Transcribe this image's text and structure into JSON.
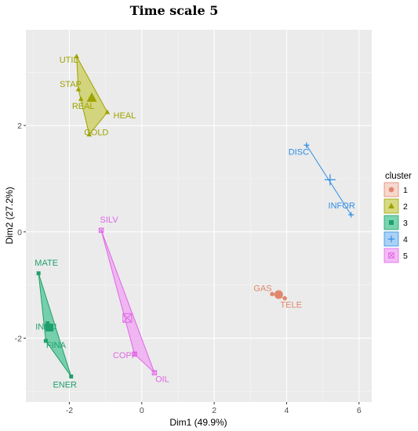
{
  "chart_data": {
    "type": "scatter",
    "title": "Time scale 5",
    "xlabel": "Dim1 (49.9%)",
    "ylabel": "Dim2 (27.2%)",
    "xlim": [
      -3.2,
      6.35
    ],
    "ylim": [
      -3.2,
      3.8
    ],
    "x_ticks": [
      -2,
      0,
      2,
      4,
      6
    ],
    "y_ticks": [
      -2,
      0,
      2
    ],
    "x_tick_labels": [
      "-2",
      "0",
      "2",
      "4",
      "6"
    ],
    "y_tick_labels": [
      "-2",
      "0",
      "2"
    ],
    "grid": true,
    "legend": {
      "title": "cluster",
      "placement": "right"
    },
    "clusters": [
      {
        "name": "1",
        "color": "#e0886e",
        "fill": "#f5c9bc",
        "shape": "circle",
        "center": [
          3.78,
          -1.18
        ],
        "hull": [
          [
            3.6,
            -1.17
          ],
          [
            3.95,
            -1.25
          ]
        ],
        "points": [
          {
            "label": "GAS",
            "x": 3.6,
            "y": -1.17
          },
          {
            "label": "TELE",
            "x": 3.95,
            "y": -1.25
          }
        ]
      },
      {
        "name": "2",
        "color": "#9ea300",
        "fill": "#c9cc5a",
        "shape": "triangle",
        "center": [
          -1.38,
          2.52
        ],
        "hull": [
          [
            -1.8,
            3.3
          ],
          [
            -0.95,
            2.25
          ],
          [
            -1.45,
            1.83
          ],
          [
            -1.75,
            2.68
          ]
        ],
        "points": [
          {
            "label": "UTIL",
            "x": -1.8,
            "y": 3.3
          },
          {
            "label": "STAP",
            "x": -1.75,
            "y": 2.68
          },
          {
            "label": "REAL",
            "x": -1.68,
            "y": 2.5
          },
          {
            "label": "HEAL",
            "x": -0.95,
            "y": 2.25
          },
          {
            "label": "GOLD",
            "x": -1.45,
            "y": 1.83
          }
        ]
      },
      {
        "name": "3",
        "color": "#1f9f6c",
        "fill": "#4ec596",
        "shape": "square",
        "center": [
          -2.55,
          -1.8
        ],
        "hull": [
          [
            -2.85,
            -0.78
          ],
          [
            -1.95,
            -2.72
          ],
          [
            -2.65,
            -2.05
          ]
        ],
        "points": [
          {
            "label": "MATE",
            "x": -2.85,
            "y": -0.78
          },
          {
            "label": "INDU",
            "x": -2.6,
            "y": -1.72
          },
          {
            "label": "FINA",
            "x": -2.65,
            "y": -2.05
          },
          {
            "label": "ENER",
            "x": -1.95,
            "y": -2.72
          }
        ]
      },
      {
        "name": "4",
        "color": "#2f8ee5",
        "fill": "#8ec2f2",
        "shape": "cross",
        "center": [
          5.2,
          0.98
        ],
        "hull": [
          [
            4.55,
            1.63
          ],
          [
            5.78,
            0.32
          ]
        ],
        "points": [
          {
            "label": "DISC",
            "x": 4.55,
            "y": 1.63
          },
          {
            "label": "INFOR",
            "x": 5.78,
            "y": 0.32
          }
        ]
      },
      {
        "name": "5",
        "color": "#e066e6",
        "fill": "#f0a4f3",
        "shape": "boxx",
        "center": [
          -0.4,
          -1.62
        ],
        "hull": [
          [
            -1.12,
            0.03
          ],
          [
            0.35,
            -2.65
          ],
          [
            -0.2,
            -2.3
          ]
        ],
        "points": [
          {
            "label": "SILV",
            "x": -1.12,
            "y": 0.03
          },
          {
            "label": "COPP",
            "x": -0.2,
            "y": -2.3
          },
          {
            "label": "OIL",
            "x": 0.35,
            "y": -2.65
          }
        ]
      }
    ]
  }
}
